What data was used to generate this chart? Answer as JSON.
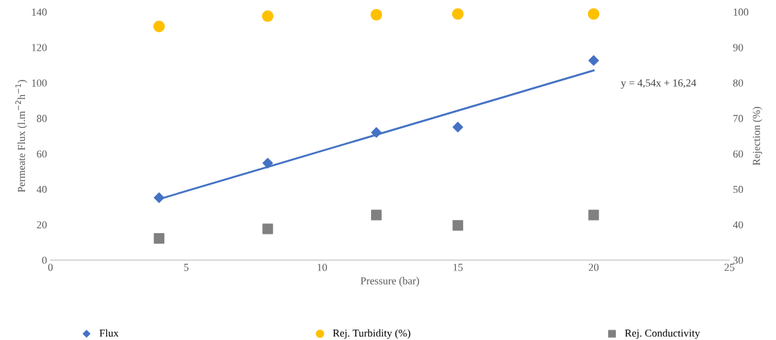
{
  "chart_data": {
    "type": "scatter",
    "xlabel": "Pressure (bar)",
    "ylabel": "Permeate Flux (l.m$^{−2}$h$^{−1}$)",
    "y2label": "Rejection (%)",
    "x": [
      4,
      8,
      12,
      15,
      20
    ],
    "xlim": [
      0,
      25
    ],
    "xticks": [
      0,
      5,
      10,
      15,
      20,
      25
    ],
    "ylim": [
      0,
      140
    ],
    "yticks": [
      0,
      20,
      40,
      60,
      80,
      100,
      120,
      140
    ],
    "y2lim": [
      30,
      100
    ],
    "y2ticks": [
      30,
      40,
      50,
      60,
      70,
      80,
      90,
      100
    ],
    "series": [
      {
        "name": "Flux",
        "color": "#4472c4",
        "marker": "diamond",
        "values": [
          35.2,
          54.7,
          72,
          75,
          112.6
        ]
      },
      {
        "name": "Rej. Turbidity (%)",
        "axis": "y2",
        "color": "#ffc000",
        "marker": "circle",
        "values": [
          95.9,
          98.8,
          99.2,
          99.4,
          99.4
        ]
      },
      {
        "name": "Rej. Conductivity",
        "axis": "y2",
        "color": "#808080",
        "marker": "square",
        "values": [
          36.1,
          38.8,
          42.7,
          39.8,
          42.7
        ]
      },
      {
        "type": "line",
        "color": "#4472c4",
        "marker": "none",
        "line_style": "solid",
        "x": [
          4,
          20
        ],
        "values": [
          34.4,
          107.0
        ]
      }
    ],
    "annotations": [
      "y = 4,54x + 16,24"
    ],
    "grid": false,
    "legend": "bottom"
  }
}
